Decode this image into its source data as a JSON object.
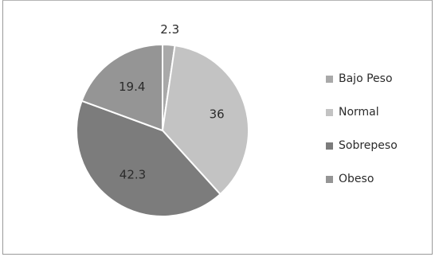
{
  "chart_data": {
    "type": "pie",
    "title": "",
    "categories": [
      "Bajo Peso",
      "Normal",
      "Sobrepeso",
      "Obeso"
    ],
    "values": [
      2.3,
      36,
      42.3,
      19.4
    ],
    "value_labels": [
      "2.3",
      "36",
      "42.3",
      "19.4"
    ],
    "colors": [
      "#a9a9a9",
      "#c3c3c3",
      "#7c7c7c",
      "#959595"
    ],
    "legend_position": "right",
    "start_angle_deg": 0,
    "direction": "clockwise"
  }
}
